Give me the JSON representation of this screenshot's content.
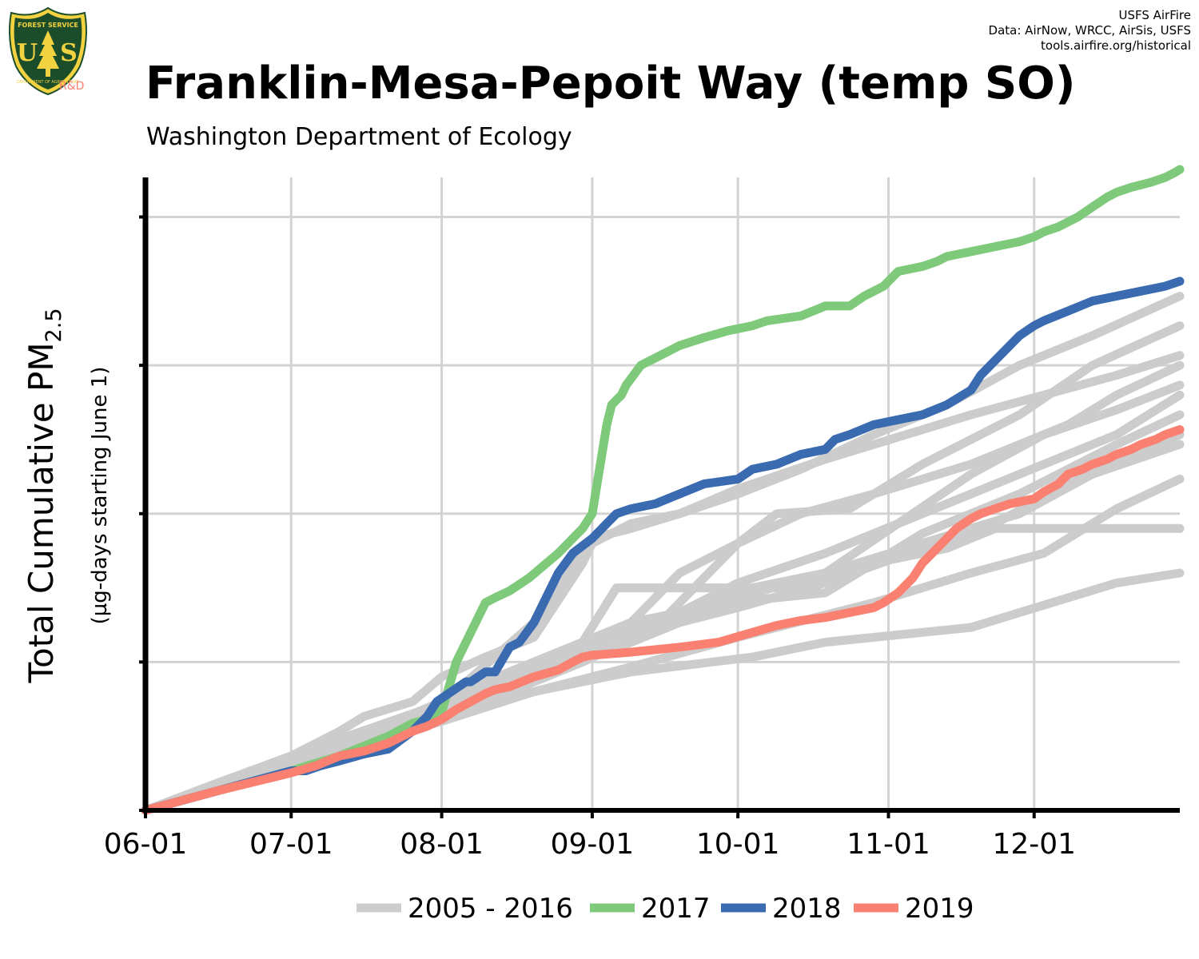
{
  "credits": {
    "line1": "USFS AirFire",
    "line2": "Data: AirNow, WRCC, AirSis, USFS",
    "line3": "tools.airfire.org/historical"
  },
  "logo": {
    "top_text": "FOREST SERVICE",
    "letters": "US",
    "bottom_text": "DEPARTMENT OF AGRICULTURE",
    "rd": "R&D",
    "colors": {
      "shield": "#1b4d2b",
      "gold": "#f2d240",
      "rd": "#fa8072"
    }
  },
  "title": "Franklin-Mesa-Pepoit Way (temp SO)",
  "subtitle": "Washington Department of Ecology",
  "chart_data": {
    "type": "line",
    "ylabel": "Total Cumulative PM",
    "ylabel_subscript": "2.5",
    "ylabel_sub": "(µg-days starting June 1)",
    "x_unit": "days since June 1",
    "xlim": [
      0,
      213
    ],
    "ylim": [
      0,
      640
    ],
    "x_ticks": [
      {
        "x": 0,
        "label": "06-01"
      },
      {
        "x": 30,
        "label": "07-01"
      },
      {
        "x": 61,
        "label": "08-01"
      },
      {
        "x": 92,
        "label": "09-01"
      },
      {
        "x": 122,
        "label": "10-01"
      },
      {
        "x": 153,
        "label": "11-01"
      },
      {
        "x": 183,
        "label": "12-01"
      }
    ],
    "y_ticks": [
      0,
      150,
      300,
      450,
      600
    ],
    "y_tick_labels_shown": false,
    "grid": true,
    "legend_position": "bottom",
    "colors": {
      "historical": "#cccccc",
      "2017": "#7ec97a",
      "2018": "#3a6bb1",
      "2019": "#fa8072"
    },
    "historical_label": "2005 - 2016",
    "historical": [
      {
        "x": [
          0,
          15,
          30,
          40,
          45,
          55,
          61,
          70,
          80,
          90,
          92,
          100,
          110,
          122,
          135,
          150,
          165,
          180,
          195,
          213
        ],
        "y": [
          0,
          28,
          55,
          80,
          95,
          110,
          135,
          155,
          175,
          250,
          270,
          290,
          300,
          320,
          345,
          380,
          410,
          450,
          480,
          520
        ]
      },
      {
        "x": [
          0,
          20,
          35,
          50,
          61,
          80,
          95,
          110,
          122,
          140,
          160,
          175,
          190,
          213
        ],
        "y": [
          0,
          30,
          55,
          85,
          110,
          135,
          160,
          190,
          205,
          230,
          265,
          290,
          330,
          380
        ]
      },
      {
        "x": [
          0,
          20,
          40,
          61,
          75,
          90,
          100,
          110,
          122,
          140,
          160,
          180,
          200,
          213
        ],
        "y": [
          0,
          30,
          62,
          100,
          130,
          165,
          180,
          200,
          230,
          260,
          300,
          340,
          380,
          420
        ]
      },
      {
        "x": [
          0,
          15,
          30,
          61,
          80,
          100,
          110,
          120,
          140,
          160,
          180,
          195,
          213
        ],
        "y": [
          0,
          20,
          50,
          100,
          140,
          170,
          190,
          220,
          240,
          270,
          300,
          340,
          370
        ]
      },
      {
        "x": [
          0,
          20,
          40,
          61,
          80,
          95,
          100,
          120,
          140,
          160,
          180,
          200,
          213
        ],
        "y": [
          0,
          30,
          60,
          110,
          140,
          170,
          190,
          210,
          220,
          280,
          320,
          370,
          400
        ]
      },
      {
        "x": [
          0,
          20,
          40,
          61,
          70,
          90,
          97,
          130,
          150,
          165,
          175,
          213
        ],
        "y": [
          0,
          32,
          65,
          110,
          130,
          170,
          225,
          225,
          250,
          265,
          285,
          285
        ]
      },
      {
        "x": [
          0,
          25,
          50,
          61,
          80,
          100,
          122,
          130,
          150,
          170,
          185,
          200,
          213
        ],
        "y": [
          0,
          38,
          75,
          95,
          120,
          145,
          175,
          185,
          210,
          240,
          260,
          305,
          335
        ]
      },
      {
        "x": [
          0,
          20,
          40,
          61,
          75,
          90,
          105,
          115,
          122,
          135,
          150,
          170,
          190,
          200,
          213
        ],
        "y": [
          0,
          30,
          62,
          92,
          120,
          150,
          185,
          235,
          270,
          300,
          320,
          350,
          390,
          420,
          450
        ]
      },
      {
        "x": [
          0,
          25,
          50,
          61,
          80,
          100,
          125,
          140,
          160,
          170,
          180,
          200,
          213
        ],
        "y": [
          0,
          35,
          75,
          90,
          120,
          140,
          155,
          170,
          180,
          185,
          200,
          230,
          240
        ]
      },
      {
        "x": [
          0,
          30,
          61,
          80,
          92,
          100,
          110,
          122,
          140,
          160,
          170,
          185,
          200,
          213
        ],
        "y": [
          0,
          55,
          108,
          190,
          275,
          285,
          300,
          325,
          355,
          385,
          400,
          420,
          440,
          460
        ]
      },
      {
        "x": [
          0,
          30,
          61,
          80,
          100,
          110,
          122,
          130,
          145,
          160,
          180,
          195,
          213
        ],
        "y": [
          0,
          50,
          100,
          150,
          190,
          240,
          270,
          300,
          305,
          350,
          400,
          450,
          490
        ]
      },
      {
        "x": [
          0,
          30,
          61,
          75,
          85,
          95,
          105,
          122,
          140,
          155,
          170,
          185,
          200,
          213
        ],
        "y": [
          0,
          55,
          105,
          135,
          155,
          175,
          190,
          215,
          240,
          290,
          340,
          380,
          405,
          430
        ]
      }
    ],
    "series": [
      {
        "name": "2017",
        "x": [
          0,
          15,
          30,
          40,
          50,
          55,
          58,
          61,
          64,
          67,
          70,
          72,
          75,
          79,
          85,
          88,
          90,
          92,
          95,
          96,
          97,
          98,
          99,
          102,
          106,
          108,
          110,
          115,
          120,
          125,
          128,
          135,
          140,
          145,
          148,
          150,
          152,
          155,
          160,
          163,
          165,
          170,
          175,
          180,
          183,
          185,
          188,
          190,
          192,
          195,
          198,
          200,
          203,
          207,
          210,
          212,
          213
        ],
        "y": [
          0,
          20,
          40,
          55,
          75,
          88,
          92,
          100,
          150,
          180,
          210,
          215,
          222,
          235,
          260,
          275,
          285,
          300,
          390,
          410,
          415,
          420,
          430,
          450,
          460,
          465,
          470,
          478,
          485,
          490,
          495,
          500,
          510,
          510,
          520,
          525,
          530,
          545,
          550,
          555,
          560,
          565,
          570,
          575,
          580,
          585,
          590,
          595,
          600,
          610,
          620,
          625,
          630,
          635,
          640,
          645,
          648
        ]
      },
      {
        "name": "2018",
        "x": [
          0,
          15,
          30,
          33,
          36,
          40,
          45,
          50,
          55,
          58,
          60,
          63,
          66,
          67,
          70,
          72,
          75,
          77,
          80,
          82,
          83,
          85,
          88,
          92,
          94,
          95,
          97,
          100,
          105,
          110,
          115,
          122,
          125,
          130,
          135,
          140,
          142,
          145,
          150,
          155,
          160,
          165,
          170,
          172,
          175,
          180,
          183,
          185,
          190,
          195,
          200,
          205,
          210,
          213
        ],
        "y": [
          0,
          20,
          40,
          40,
          45,
          50,
          57,
          62,
          80,
          95,
          110,
          120,
          130,
          130,
          140,
          140,
          165,
          170,
          190,
          210,
          220,
          240,
          260,
          275,
          285,
          290,
          300,
          305,
          310,
          320,
          330,
          335,
          345,
          350,
          360,
          365,
          375,
          380,
          390,
          395,
          400,
          410,
          425,
          440,
          455,
          480,
          490,
          495,
          505,
          515,
          520,
          525,
          530,
          535
        ]
      },
      {
        "name": "2019",
        "x": [
          0,
          15,
          30,
          35,
          40,
          45,
          50,
          55,
          58,
          61,
          64,
          67,
          70,
          72,
          75,
          80,
          85,
          88,
          90,
          92,
          95,
          100,
          110,
          118,
          125,
          130,
          135,
          140,
          145,
          150,
          152,
          155,
          158,
          160,
          163,
          165,
          167,
          170,
          172,
          175,
          178,
          180,
          183,
          185,
          188,
          190,
          193,
          195,
          198,
          200,
          203,
          205,
          208,
          210,
          213
        ],
        "y": [
          0,
          20,
          38,
          45,
          55,
          60,
          68,
          80,
          85,
          92,
          102,
          110,
          118,
          122,
          125,
          135,
          142,
          150,
          155,
          157,
          158,
          160,
          165,
          170,
          180,
          187,
          192,
          195,
          200,
          205,
          210,
          220,
          235,
          250,
          265,
          275,
          285,
          295,
          300,
          305,
          310,
          312,
          315,
          322,
          330,
          340,
          345,
          350,
          355,
          360,
          365,
          370,
          375,
          380,
          385
        ]
      }
    ]
  }
}
